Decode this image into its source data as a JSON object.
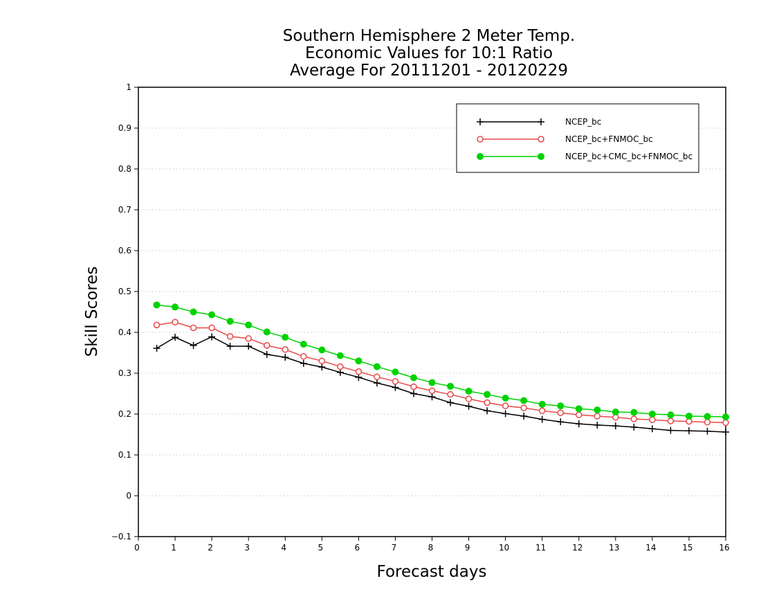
{
  "chart_data": {
    "type": "line",
    "title": [
      "Southern Hemisphere 2 Meter Temp.",
      "Economic Values for 10:1 Ratio",
      "Average For 20111201 - 20120229"
    ],
    "xlabel": "Forecast days",
    "ylabel": "Skill Scores",
    "xlim": [
      0,
      16
    ],
    "ylim": [
      -0.1,
      1
    ],
    "xticks": [
      "0",
      "1",
      "2",
      "3",
      "4",
      "5",
      "6",
      "7",
      "8",
      "9",
      "10",
      "11",
      "12",
      "13",
      "14",
      "15",
      "16"
    ],
    "yticks": [
      "−0.1",
      "0",
      "0.1",
      "0.2",
      "0.3",
      "0.4",
      "0.5",
      "0.6",
      "0.7",
      "0.8",
      "0.9",
      "1"
    ],
    "grid": true,
    "legend_position": "top-right",
    "x": [
      0.5,
      1,
      1.5,
      2,
      2.5,
      3,
      3.5,
      4,
      4.5,
      5,
      5.5,
      6,
      6.5,
      7,
      7.5,
      8,
      8.5,
      9,
      9.5,
      10,
      10.5,
      11,
      11.5,
      12,
      12.5,
      13,
      13.5,
      14,
      14.5,
      15,
      15.5,
      16
    ],
    "series": [
      {
        "name": "NCEP_bc",
        "color": "#000000",
        "marker": "plus",
        "values": [
          0.361,
          0.388,
          0.368,
          0.389,
          0.366,
          0.366,
          0.346,
          0.339,
          0.324,
          0.315,
          0.302,
          0.29,
          0.276,
          0.265,
          0.25,
          0.242,
          0.228,
          0.219,
          0.208,
          0.201,
          0.195,
          0.187,
          0.181,
          0.176,
          0.173,
          0.171,
          0.168,
          0.164,
          0.16,
          0.159,
          0.158,
          0.156
        ]
      },
      {
        "name": "NCEP_bc+FNMOC_bc",
        "color": "#e84848",
        "marker": "open-circle",
        "values": [
          0.418,
          0.425,
          0.411,
          0.411,
          0.39,
          0.385,
          0.368,
          0.358,
          0.341,
          0.33,
          0.316,
          0.304,
          0.291,
          0.28,
          0.267,
          0.257,
          0.248,
          0.237,
          0.228,
          0.22,
          0.215,
          0.208,
          0.203,
          0.198,
          0.195,
          0.192,
          0.188,
          0.186,
          0.183,
          0.182,
          0.18,
          0.179
        ]
      },
      {
        "name": "NCEP_bc+CMC_bc+FNMOC_bc",
        "color": "#00d200",
        "marker": "filled-circle",
        "values": [
          0.467,
          0.462,
          0.45,
          0.443,
          0.427,
          0.418,
          0.401,
          0.388,
          0.371,
          0.357,
          0.343,
          0.33,
          0.316,
          0.303,
          0.289,
          0.277,
          0.268,
          0.256,
          0.248,
          0.239,
          0.233,
          0.224,
          0.22,
          0.213,
          0.21,
          0.205,
          0.204,
          0.2,
          0.198,
          0.195,
          0.194,
          0.193
        ]
      }
    ]
  }
}
